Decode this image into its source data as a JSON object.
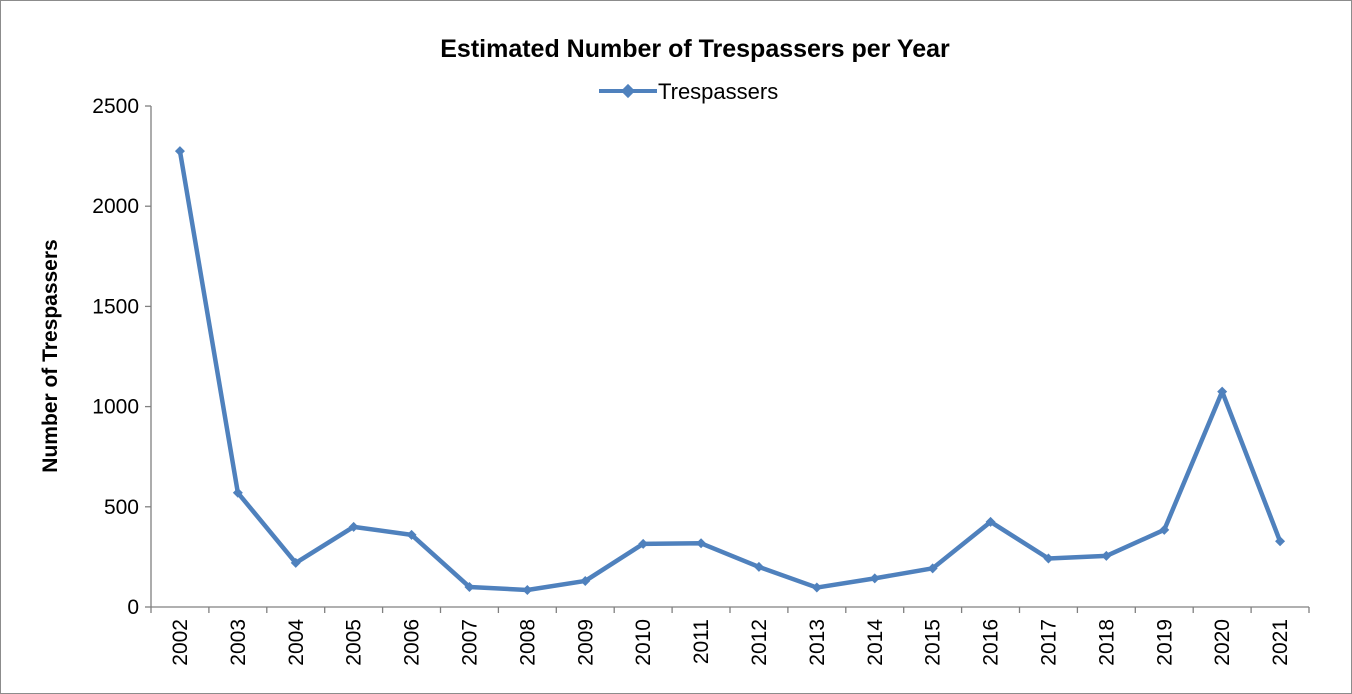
{
  "chart_data": {
    "type": "line",
    "title": "Estimated Number of Trespassers per Year",
    "xlabel": "",
    "ylabel": "Number of Trespassers",
    "categories": [
      "2002",
      "2003",
      "2004",
      "2005",
      "2006",
      "2007",
      "2008",
      "2009",
      "2010",
      "2011",
      "2012",
      "2013",
      "2014",
      "2015",
      "2016",
      "2017",
      "2018",
      "2019",
      "2020",
      "2021"
    ],
    "series": [
      {
        "name": "Trespassers",
        "color": "#4f81bd",
        "marker": "diamond",
        "values": [
          2275,
          570,
          220,
          400,
          360,
          100,
          85,
          130,
          315,
          318,
          200,
          97,
          143,
          193,
          425,
          242,
          255,
          385,
          1075,
          328
        ]
      }
    ],
    "ylim": [
      0,
      2500
    ],
    "yticks": [
      0,
      500,
      1000,
      1500,
      2000,
      2500
    ],
    "grid": false,
    "legend": "top-center"
  }
}
